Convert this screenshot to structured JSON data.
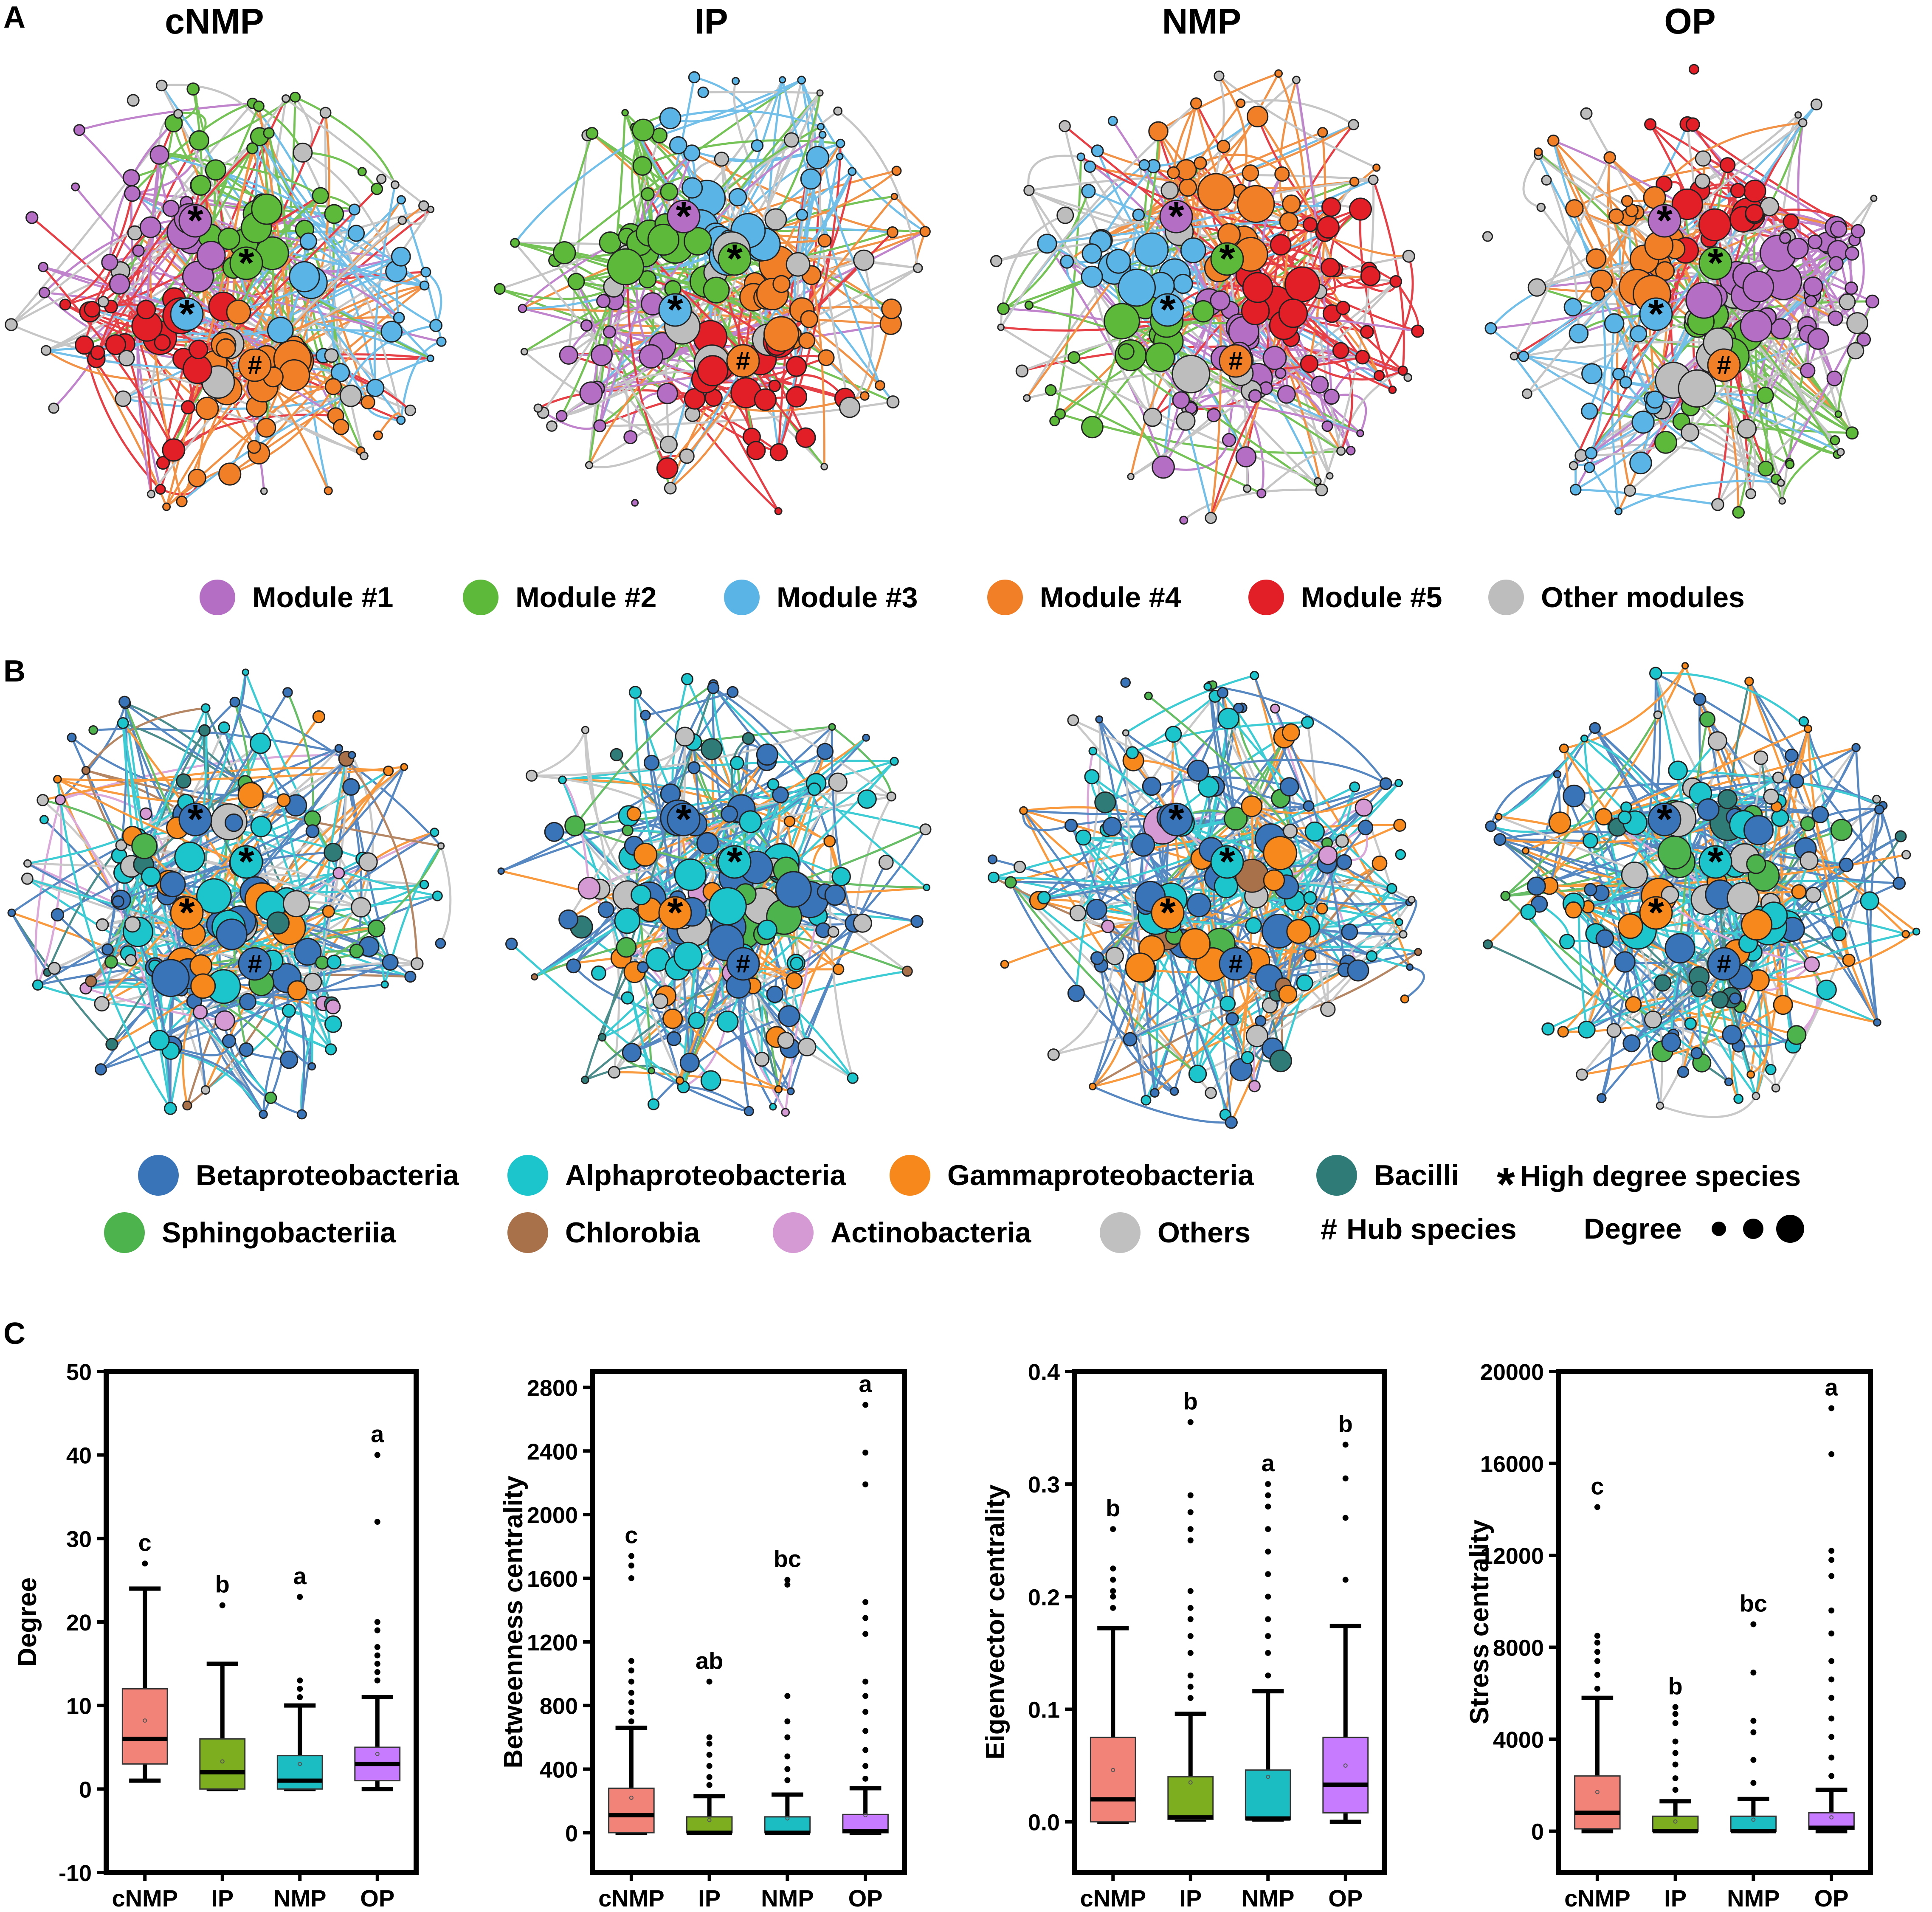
{
  "panel_labels": {
    "a": "A",
    "b": "B",
    "c": "C"
  },
  "columns": [
    "cNMP",
    "IP",
    "NMP",
    "OP"
  ],
  "colors": {
    "module1": "#b46fc4",
    "module2": "#5db93a",
    "module3": "#5ab4e6",
    "module4": "#f07f28",
    "module5": "#e21e26",
    "other": "#bdbdbd",
    "beta": "#3a74b8",
    "alpha": "#1cc4cc",
    "gamma": "#f7891c",
    "bacilli": "#2e7b78",
    "sphingo": "#4db34d",
    "chlorobia": "#a9714a",
    "actino": "#d59ad4",
    "others": "#c0c0c0",
    "box_cNMP": "#f28379",
    "box_IP": "#7cae1f",
    "box_NMP": "#1cbdc2",
    "box_OP": "#c77cff"
  },
  "legend_modules": [
    {
      "label": "Module #1",
      "color": "#b46fc4"
    },
    {
      "label": "Module #2",
      "color": "#5db93a"
    },
    {
      "label": "Module #3",
      "color": "#5ab4e6"
    },
    {
      "label": "Module #4",
      "color": "#f07f28"
    },
    {
      "label": "Module #5",
      "color": "#e21e26"
    },
    {
      "label": "Other modules",
      "color": "#bdbdbd"
    }
  ],
  "legend_taxa": [
    {
      "label": "Betaproteobacteria",
      "color": "#3a74b8"
    },
    {
      "label": "Alphaproteobacteria",
      "color": "#1cc4cc"
    },
    {
      "label": "Gammaproteobacteria",
      "color": "#f7891c"
    },
    {
      "label": "Bacilli",
      "color": "#2e7b78"
    },
    {
      "label": "Sphingobacteriia",
      "color": "#4db34d"
    },
    {
      "label": "Chlorobia",
      "color": "#a9714a"
    },
    {
      "label": "Actinobacteria",
      "color": "#d59ad4"
    },
    {
      "label": "Others",
      "color": "#c0c0c0"
    }
  ],
  "legend_symbols": {
    "high_degree_symbol": "*",
    "high_degree_label": "High degree species",
    "hub_symbol": "#",
    "hub_label": "Hub species",
    "degree_label": "Degree"
  },
  "chart_data": [
    {
      "type": "boxplot",
      "ylabel": "Degree",
      "ylim": [
        -10,
        50
      ],
      "yticks": [
        "-10",
        "0",
        "10",
        "20",
        "30",
        "40",
        "50"
      ],
      "tick_values": [
        -10,
        0,
        10,
        20,
        30,
        40,
        50
      ],
      "categories": [
        "cNMP",
        "IP",
        "NMP",
        "OP"
      ],
      "boxes": [
        {
          "q1": 3,
          "median": 6,
          "q3": 12,
          "whisker_low": 1,
          "whisker_high": 24,
          "mean": 8.2,
          "outliers": [
            27
          ],
          "letter": "c"
        },
        {
          "q1": 0,
          "median": 2,
          "q3": 6,
          "whisker_low": 0,
          "whisker_high": 15,
          "mean": 3.3,
          "outliers": [
            22
          ],
          "letter": "b"
        },
        {
          "q1": 0,
          "median": 1,
          "q3": 4,
          "whisker_low": 0,
          "whisker_high": 10,
          "mean": 3.0,
          "outliers": [
            11,
            12,
            13,
            23
          ],
          "letter": "a"
        },
        {
          "q1": 1,
          "median": 3,
          "q3": 5,
          "whisker_low": 0,
          "whisker_high": 11,
          "mean": 4.2,
          "outliers": [
            13,
            14,
            15,
            16,
            17,
            19,
            20,
            32,
            40
          ],
          "letter": "a"
        }
      ]
    },
    {
      "type": "boxplot",
      "ylabel": "Betweenness centrality",
      "ylim": [
        -250,
        2900
      ],
      "yticks": [
        "0",
        "400",
        "800",
        "1200",
        "1600",
        "2000",
        "2400",
        "2800"
      ],
      "tick_values": [
        0,
        400,
        800,
        1200,
        1600,
        2000,
        2400,
        2800
      ],
      "categories": [
        "cNMP",
        "IP",
        "NMP",
        "OP"
      ],
      "boxes": [
        {
          "q1": 0,
          "median": 110,
          "q3": 280,
          "whisker_low": 0,
          "whisker_high": 660,
          "mean": 220,
          "outliers": [
            700,
            760,
            820,
            880,
            950,
            1020,
            1080,
            1600,
            1680,
            1740
          ],
          "letter": "c"
        },
        {
          "q1": 0,
          "median": 0,
          "q3": 100,
          "whisker_low": 0,
          "whisker_high": 230,
          "mean": 80,
          "outliers": [
            300,
            350,
            420,
            490,
            560,
            600,
            950
          ],
          "letter": "ab"
        },
        {
          "q1": 0,
          "median": 0,
          "q3": 100,
          "whisker_low": 0,
          "whisker_high": 240,
          "mean": 90,
          "outliers": [
            330,
            400,
            480,
            600,
            700,
            860,
            1560,
            1590
          ],
          "letter": "bc"
        },
        {
          "q1": 0,
          "median": 10,
          "q3": 115,
          "whisker_low": 0,
          "whisker_high": 280,
          "mean": 110,
          "outliers": [
            340,
            420,
            520,
            640,
            760,
            860,
            950,
            1250,
            1350,
            1450,
            2190,
            2390,
            2690
          ],
          "letter": "a"
        }
      ]
    },
    {
      "type": "boxplot",
      "ylabel": "Eigenvector centrality",
      "ylim": [
        -0.045,
        0.4
      ],
      "yticks": [
        "0.0",
        "0.1",
        "0.2",
        "0.3",
        "0.4"
      ],
      "tick_values": [
        0,
        0.1,
        0.2,
        0.3,
        0.4
      ],
      "categories": [
        "cNMP",
        "IP",
        "NMP",
        "OP"
      ],
      "boxes": [
        {
          "q1": 0,
          "median": 0.02,
          "q3": 0.075,
          "whisker_low": 0,
          "whisker_high": 0.172,
          "mean": 0.046,
          "outliers": [
            0.19,
            0.2,
            0.205,
            0.215,
            0.225,
            0.26
          ],
          "letter": "b"
        },
        {
          "q1": 0.002,
          "median": 0.004,
          "q3": 0.04,
          "whisker_low": 0.002,
          "whisker_high": 0.096,
          "mean": 0.035,
          "outliers": [
            0.11,
            0.12,
            0.13,
            0.15,
            0.165,
            0.18,
            0.19,
            0.205,
            0.25,
            0.26,
            0.275,
            0.29,
            0.355
          ],
          "letter": "b"
        },
        {
          "q1": 0.002,
          "median": 0.003,
          "q3": 0.046,
          "whisker_low": 0.002,
          "whisker_high": 0.116,
          "mean": 0.04,
          "outliers": [
            0.13,
            0.15,
            0.165,
            0.18,
            0.2,
            0.22,
            0.24,
            0.26,
            0.28,
            0.29,
            0.3
          ],
          "letter": "a"
        },
        {
          "q1": 0.008,
          "median": 0.033,
          "q3": 0.075,
          "whisker_low": 0,
          "whisker_high": 0.174,
          "mean": 0.05,
          "outliers": [
            0.215,
            0.27,
            0.305,
            0.335
          ],
          "letter": "b"
        }
      ]
    },
    {
      "type": "boxplot",
      "ylabel": "Stress centrality",
      "ylim": [
        -1800,
        20000
      ],
      "yticks": [
        "0",
        "4000",
        "8000",
        "12000",
        "16000",
        "20000"
      ],
      "tick_values": [
        0,
        4000,
        8000,
        12000,
        16000,
        20000
      ],
      "categories": [
        "cNMP",
        "IP",
        "NMP",
        "OP"
      ],
      "boxes": [
        {
          "q1": 100,
          "median": 800,
          "q3": 2400,
          "whisker_low": 0,
          "whisker_high": 5800,
          "mean": 1700,
          "outliers": [
            6200,
            6800,
            7400,
            7800,
            8200,
            8500,
            14100
          ],
          "letter": "c"
        },
        {
          "q1": 0,
          "median": 0,
          "q3": 650,
          "whisker_low": 0,
          "whisker_high": 1300,
          "mean": 420,
          "outliers": [
            1800,
            2300,
            2900,
            3400,
            3900,
            4700,
            5100,
            5400
          ],
          "letter": "b"
        },
        {
          "q1": 0,
          "median": 0,
          "q3": 650,
          "whisker_low": 0,
          "whisker_high": 1400,
          "mean": 500,
          "outliers": [
            2100,
            3100,
            4300,
            4800,
            6900,
            9000
          ],
          "letter": "bc"
        },
        {
          "q1": 80,
          "median": 150,
          "q3": 800,
          "whisker_low": 0,
          "whisker_high": 1800,
          "mean": 600,
          "outliers": [
            2400,
            3200,
            4100,
            4900,
            5800,
            6600,
            7400,
            8600,
            9600,
            11100,
            11800,
            12200,
            16400,
            18400
          ],
          "letter": "a"
        }
      ]
    }
  ]
}
